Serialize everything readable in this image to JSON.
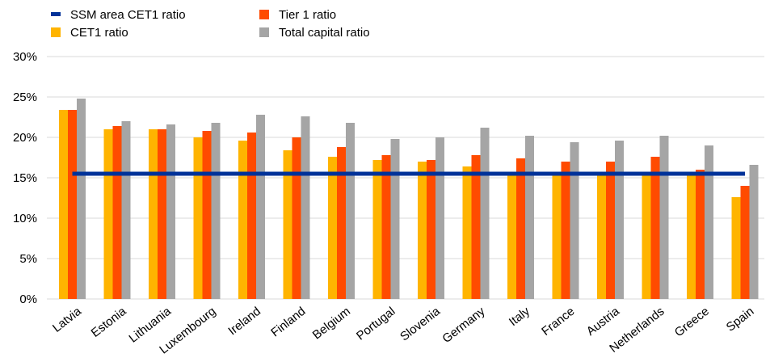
{
  "chart_data": {
    "type": "bar",
    "categories": [
      "Latvia",
      "Estonia",
      "Lithuania",
      "Luxembourg",
      "Ireland",
      "Finland",
      "Belgium",
      "Portugal",
      "Slovenia",
      "Germany",
      "Italy",
      "France",
      "Austria",
      "Netherlands",
      "Greece",
      "Spain"
    ],
    "series": [
      {
        "name": "CET1 ratio",
        "color": "#FFB400",
        "values": [
          23.4,
          21.0,
          21.0,
          20.0,
          19.6,
          18.4,
          17.6,
          17.2,
          17.0,
          16.4,
          15.6,
          15.6,
          15.6,
          15.6,
          15.6,
          12.6
        ]
      },
      {
        "name": "Tier 1 ratio",
        "color": "#FF4B00",
        "values": [
          23.4,
          21.4,
          21.0,
          20.8,
          20.6,
          20.0,
          18.8,
          17.8,
          17.2,
          17.8,
          17.4,
          17.0,
          17.0,
          17.6,
          16.0,
          14.0
        ]
      },
      {
        "name": "Total capital ratio",
        "color": "#A5A5A5",
        "values": [
          24.8,
          22.0,
          21.6,
          21.8,
          22.8,
          22.6,
          21.8,
          19.8,
          20.0,
          21.2,
          20.2,
          19.4,
          19.6,
          20.2,
          19.0,
          16.6
        ]
      }
    ],
    "reference_line": {
      "name": "SSM area CET1 ratio",
      "color": "#003299",
      "value": 15.5
    },
    "ylim": [
      0,
      30
    ],
    "yticks": [
      0,
      5,
      10,
      15,
      20,
      25,
      30
    ],
    "ytick_labels": [
      "0%",
      "5%",
      "10%",
      "15%",
      "20%",
      "25%",
      "30%"
    ],
    "grid": true,
    "legend_position": "top-left",
    "title": "",
    "xlabel": "",
    "ylabel": ""
  }
}
